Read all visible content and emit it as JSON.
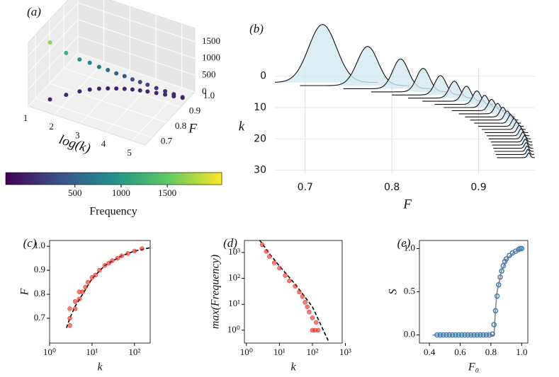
{
  "chart_data": [
    {
      "type": "scatter3d",
      "panel": "(a)",
      "xlabel": "log(k)",
      "ylabel": "F",
      "xlim": [
        1,
        5.5
      ],
      "ylim": [
        0.65,
        1.0
      ],
      "zlim": [
        0,
        1900
      ],
      "xticks": [
        1,
        2,
        3,
        4,
        5
      ],
      "yticks": [
        0.7,
        0.8,
        0.9,
        {
          "value": 1.0,
          "label": "1.0"
        }
      ],
      "zticks": [
        0,
        500,
        1000,
        1500
      ],
      "x": [
        1.45,
        1.8,
        2.1,
        2.35,
        2.6,
        2.85,
        3.1,
        3.35,
        3.6,
        3.85,
        4.1,
        4.4,
        4.7,
        5.0,
        5.3,
        1.45,
        1.8,
        2.1,
        2.35,
        2.6,
        2.85,
        3.1,
        3.35,
        3.6,
        3.85,
        4.1,
        4.4,
        4.7,
        5.0,
        5.3
      ],
      "y": [
        0.72,
        0.77,
        0.81,
        0.836,
        0.856,
        0.872,
        0.886,
        0.898,
        0.908,
        0.916,
        0.923,
        0.93,
        0.937,
        0.943,
        0.95,
        0.72,
        0.77,
        0.81,
        0.836,
        0.856,
        0.872,
        0.886,
        0.898,
        0.908,
        0.916,
        0.923,
        0.93,
        0.937,
        0.943,
        0.95
      ],
      "z": [
        1700,
        1250,
        950,
        800,
        650,
        550,
        450,
        380,
        300,
        250,
        200,
        150,
        100,
        60,
        20,
        0,
        0,
        0,
        0,
        0,
        0,
        0,
        0,
        0,
        0,
        0,
        0,
        0,
        0,
        0
      ],
      "colormap": "viridis",
      "colorbar": {
        "label": "Frequency",
        "clim": [
          -250,
          2090
        ],
        "ticks": [
          500,
          1000,
          1500
        ]
      }
    },
    {
      "type": "ridgeline",
      "panel": "(b)",
      "xlabel": "F",
      "ylabel": "k",
      "xlim": [
        0.665,
        0.965
      ],
      "ylim": [
        31,
        -18
      ],
      "xticks": [
        0.7,
        0.8,
        0.9
      ],
      "yticks": [
        0,
        10,
        20,
        30
      ],
      "grid": true,
      "color": "#111111",
      "fill": "#d3e8f1",
      "k": [
        2,
        3,
        4,
        5,
        6,
        7,
        8,
        9,
        10,
        11,
        12,
        13,
        14,
        15,
        16,
        17,
        18,
        19,
        20,
        21,
        22,
        23,
        24,
        25,
        26
      ],
      "center": [
        0.72,
        0.772,
        0.81,
        0.836,
        0.856,
        0.872,
        0.886,
        0.898,
        0.907,
        0.915,
        0.922,
        0.928,
        0.933,
        0.937,
        0.941,
        0.944,
        0.947,
        0.949,
        0.951,
        0.953,
        0.954,
        0.955,
        0.956,
        0.957,
        0.958
      ],
      "height": [
        18.5,
        12.5,
        9.5,
        7.5,
        6.2,
        5.4,
        4.8,
        4.3,
        3.9,
        3.6,
        3.3,
        3.1,
        2.9,
        2.7,
        2.5,
        2.4,
        2.3,
        2.2,
        2.1,
        2.0,
        1.9,
        1.8,
        1.7,
        1.6,
        1.5
      ],
      "width": [
        0.016,
        0.012,
        0.009,
        0.0075,
        0.0065,
        0.0058,
        0.0052,
        0.0047,
        0.0043,
        0.004,
        0.0037,
        0.0034,
        0.0032,
        0.003,
        0.0028,
        0.0026,
        0.0025,
        0.0024,
        0.0023,
        0.0022,
        0.0021,
        0.002,
        0.0019,
        0.0018,
        0.0017
      ]
    },
    {
      "type": "scatter",
      "panel": "(c)",
      "xlabel": "k",
      "ylabel": "F",
      "xlog": true,
      "xlim": [
        1,
        235
      ],
      "ylim": [
        0.597,
        1.024
      ],
      "xticks": [
        {
          "value": 1,
          "label": "10⁰"
        },
        {
          "value": 10,
          "label": "10¹"
        },
        {
          "value": 100,
          "label": "10²"
        }
      ],
      "yticks": [
        0.7,
        0.8,
        0.9,
        {
          "value": 1.0,
          "label": "1.0"
        }
      ],
      "points": {
        "color": "#e3241c",
        "x": [
          3,
          3,
          3,
          4,
          4,
          5,
          5,
          6,
          7,
          8,
          10,
          12,
          15,
          20,
          25,
          30,
          40,
          50,
          70,
          100,
          150
        ],
        "y": [
          0.7,
          0.74,
          0.67,
          0.74,
          0.77,
          0.78,
          0.81,
          0.81,
          0.83,
          0.85,
          0.87,
          0.88,
          0.9,
          0.92,
          0.93,
          0.94,
          0.95,
          0.96,
          0.97,
          0.98,
          0.99
        ]
      },
      "fit": {
        "color": "#000000",
        "dash": true,
        "x": [
          2.5,
          3,
          4,
          6,
          10,
          20,
          50,
          100,
          250
        ],
        "y": [
          0.66,
          0.7,
          0.75,
          0.8,
          0.865,
          0.92,
          0.96,
          0.98,
          0.995
        ]
      }
    },
    {
      "type": "scatter",
      "panel": "(d)",
      "xlabel": "k",
      "ylabel": "max(Frequency)",
      "xlog": true,
      "ylog": true,
      "xlim": [
        0.87,
        800
      ],
      "ylim": [
        0.32,
        2900
      ],
      "xticks": [
        {
          "value": 1,
          "label": "10⁰"
        },
        {
          "value": 10,
          "label": "10¹"
        },
        {
          "value": 100,
          "label": "10²"
        },
        {
          "value": 1000,
          "label": "10³"
        }
      ],
      "yticks": [
        {
          "value": 1,
          "label": "10⁰"
        },
        {
          "value": 10,
          "label": "10¹"
        },
        {
          "value": 100,
          "label": "10²"
        },
        {
          "value": 1000,
          "label": "10³"
        }
      ],
      "points": {
        "color": "#e3241c",
        "x": [
          3,
          4,
          5,
          7,
          10,
          15,
          20,
          30,
          40,
          50,
          60,
          70,
          80,
          100,
          100,
          120,
          150,
          130
        ],
        "y": [
          2000,
          1100,
          700,
          400,
          250,
          130,
          80,
          50,
          30,
          20,
          12,
          8,
          5,
          3,
          1,
          1,
          1,
          2
        ]
      },
      "fit": {
        "color": "#000000",
        "dash": true,
        "x": [
          2.5,
          5,
          10,
          30,
          100,
          300
        ],
        "y": [
          3000,
          900,
          300,
          60,
          8,
          0.4
        ]
      }
    },
    {
      "type": "scatter",
      "panel": "(e)",
      "xlabel": "F₀",
      "ylabel": "S",
      "xlim": [
        0.335,
        1.04
      ],
      "ylim": [
        -0.094,
        1.094
      ],
      "xticks": [
        0.4,
        0.6,
        0.8,
        {
          "value": 1.0,
          "label": "1.0"
        }
      ],
      "yticks": [
        {
          "value": 0,
          "label": "0.0"
        },
        0.5,
        {
          "value": 1.0,
          "label": "1.0"
        }
      ],
      "points": {
        "color": "#4a7fb0",
        "open": true,
        "x": [
          0.45,
          0.47,
          0.49,
          0.51,
          0.53,
          0.55,
          0.57,
          0.59,
          0.61,
          0.63,
          0.65,
          0.67,
          0.69,
          0.71,
          0.73,
          0.75,
          0.77,
          0.79,
          0.81,
          0.82,
          0.83,
          0.84,
          0.85,
          0.86,
          0.87,
          0.88,
          0.89,
          0.9,
          0.92,
          0.94,
          0.96,
          0.98,
          0.99,
          1.0
        ],
        "y": [
          0,
          0,
          0,
          0,
          0,
          0,
          0,
          0,
          0,
          0,
          0,
          0,
          0,
          0,
          0,
          0,
          0,
          0,
          0.01,
          0.12,
          0.28,
          0.45,
          0.58,
          0.67,
          0.74,
          0.8,
          0.85,
          0.88,
          0.92,
          0.95,
          0.97,
          0.99,
          1.0,
          1.0
        ]
      },
      "fit": {
        "color": "#888888",
        "x": [
          0.42,
          0.82,
          0.83,
          0.84,
          0.87,
          0.9,
          0.95,
          1.0
        ],
        "y": [
          0,
          0,
          0.3,
          0.5,
          0.75,
          0.87,
          0.96,
          1.0
        ]
      }
    }
  ]
}
